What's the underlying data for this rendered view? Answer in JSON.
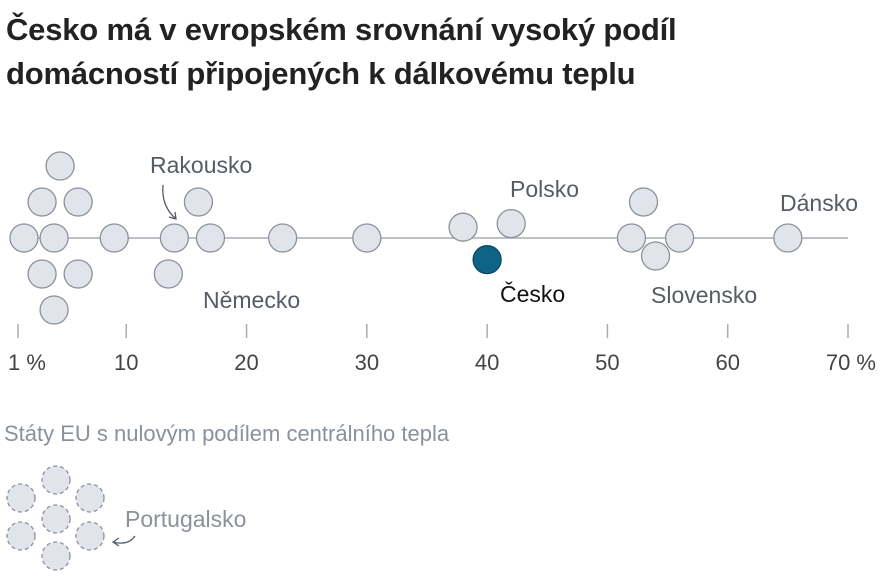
{
  "title": {
    "line1": "Česko má v evropském srovnání vysoký podíl",
    "line2": "domácností připojených k dálkovému teplu"
  },
  "chart_data": {
    "type": "scatter",
    "xlabel": "",
    "ylabel": "",
    "xlim": [
      1,
      70
    ],
    "x_ticks": [
      1,
      10,
      20,
      30,
      40,
      50,
      60,
      70
    ],
    "tick_labels": [
      "1 %",
      "10",
      "20",
      "30",
      "40",
      "50",
      "60",
      "70 %"
    ],
    "points": [
      {
        "value": 1.5,
        "row": 0
      },
      {
        "value": 3.0,
        "row": 1
      },
      {
        "value": 4.5,
        "row": 2
      },
      {
        "value": 6.0,
        "row": 1
      },
      {
        "value": 4.0,
        "row": 0
      },
      {
        "value": 6.0,
        "row": -1
      },
      {
        "value": 3.0,
        "row": -1
      },
      {
        "value": 4.0,
        "row": -2
      },
      {
        "value": 9.0,
        "row": 0
      },
      {
        "value": 14.0,
        "row": 0,
        "label": "Rakousko"
      },
      {
        "value": 16.0,
        "row": 1
      },
      {
        "value": 13.5,
        "row": -1,
        "label": "Německo"
      },
      {
        "value": 17.0,
        "row": 0
      },
      {
        "value": 23.0,
        "row": 0
      },
      {
        "value": 30.0,
        "row": 0
      },
      {
        "value": 38.0,
        "row": 0.3
      },
      {
        "value": 42.0,
        "row": 0.4,
        "label": "Polsko"
      },
      {
        "value": 40.0,
        "row": -0.6,
        "label": "Česko",
        "highlight": true
      },
      {
        "value": 52.0,
        "row": 0
      },
      {
        "value": 53.0,
        "row": 1
      },
      {
        "value": 54.0,
        "row": -0.5,
        "label": "Slovensko"
      },
      {
        "value": 56.0,
        "row": 0
      },
      {
        "value": 65.0,
        "row": 0,
        "label": "Dánsko"
      }
    ],
    "zero_group": {
      "subtitle": "Státy EU s nulovým podílem centrálního tepla",
      "count": 7,
      "label": "Portugalsko"
    },
    "colors": {
      "point_fill": "#e2e4ec",
      "point_stroke": "#8c909a",
      "highlight_fill": "#0e6485",
      "highlight_stroke": "#0a4a63",
      "axis": "#a8acb3",
      "label": "#555c66",
      "label_highlight": "#111111",
      "subtitle": "#8a919b"
    }
  }
}
